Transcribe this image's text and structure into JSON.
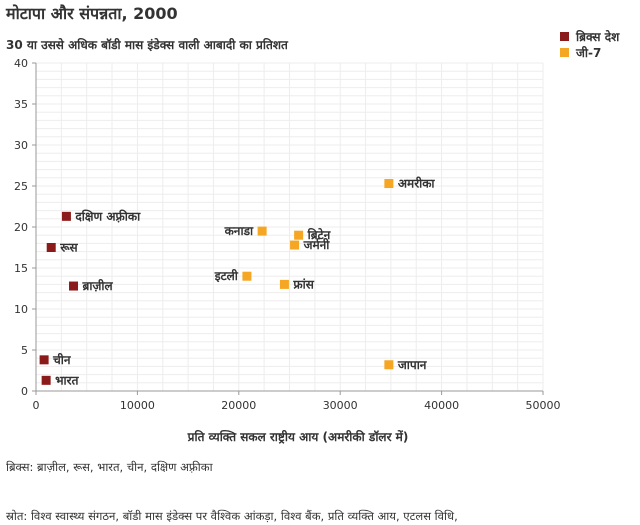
{
  "chart_data": {
    "type": "scatter",
    "title": "मोटापा और संपन्नता, 2000",
    "subtitle": "30 या उससे अधिक बॉडी मास इंडेक्स वाली आबादी का प्रतिशत",
    "xlabel": "प्रति व्यक्ति सकल राष्ट्रीय आय (अमरीकी डॉलर में)",
    "ylabel": "",
    "xlim": [
      0,
      50000
    ],
    "ylim": [
      0,
      40
    ],
    "xticks": [
      0,
      10000,
      20000,
      30000,
      40000,
      50000
    ],
    "yticks": [
      0,
      5,
      10,
      15,
      20,
      25,
      30,
      35,
      40
    ],
    "grid": true,
    "legend_position": "top-right",
    "series": [
      {
        "name": "ब्रिक्स देश",
        "color": "#8b1a1a",
        "points": [
          {
            "label": "दक्षिण अफ़्रीका",
            "x": 3000,
            "y": 21.3
          },
          {
            "label": "रूस",
            "x": 1500,
            "y": 17.5
          },
          {
            "label": "ब्राज़ील",
            "x": 3700,
            "y": 12.8
          },
          {
            "label": "चीन",
            "x": 800,
            "y": 3.8
          },
          {
            "label": "भारत",
            "x": 1000,
            "y": 1.3
          }
        ]
      },
      {
        "name": "जी-7",
        "color": "#f5a623",
        "points": [
          {
            "label": "अमरीका",
            "x": 34800,
            "y": 25.3
          },
          {
            "label": "कनाडा",
            "x": 22300,
            "y": 19.5
          },
          {
            "label": "ब्रिटेन",
            "x": 25900,
            "y": 19.0
          },
          {
            "label": "जर्मनी",
            "x": 25500,
            "y": 17.8
          },
          {
            "label": "इटली",
            "x": 20800,
            "y": 14.0
          },
          {
            "label": "फ्रांस",
            "x": 24500,
            "y": 13.0
          },
          {
            "label": "जापान",
            "x": 34800,
            "y": 3.2
          }
        ]
      }
    ]
  },
  "footer": {
    "note": "ब्रिक्स: ब्राज़ील, रूस, भारत, चीन, दक्षिण अफ़्रीका",
    "source": "स्रोत: विश्व स्वास्थ्य संगठन, बॉडी मास इंडेक्स पर वैश्विक आंकड़ा, विश्व बैंक, प्रति व्यक्ति आय, एटलस विधि,"
  }
}
